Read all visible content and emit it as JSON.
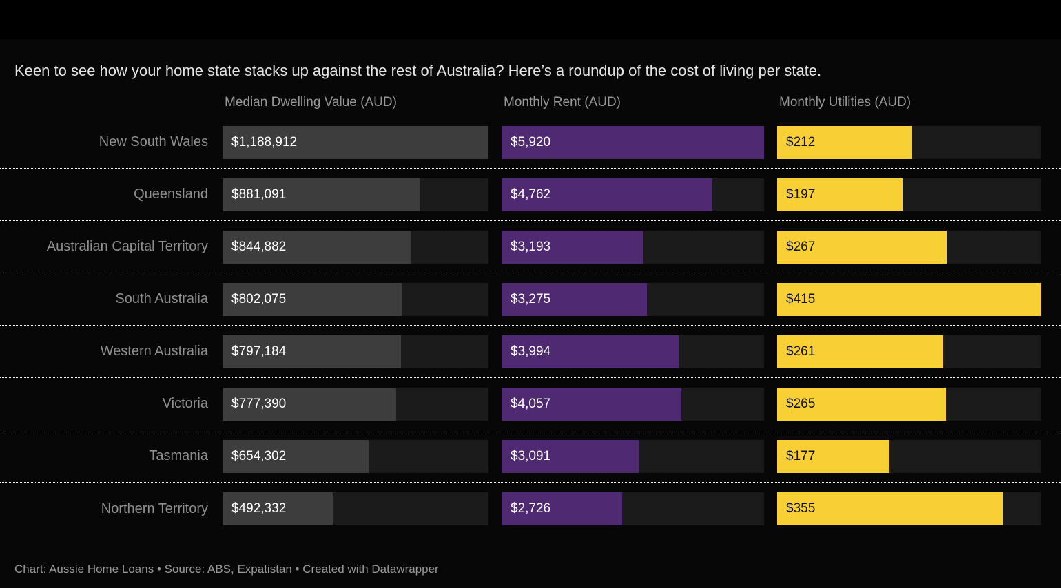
{
  "page": {
    "subtitle": "Keen to see how your home state stacks up against the rest of Australia? Here’s a roundup of the cost of living per state.",
    "footer": "Chart: Aussie Home Loans • Source: ABS, Expatistan • Created with Datawrapper"
  },
  "colors": {
    "background": "#070707",
    "track": "#1b1b1b",
    "dwelling_bar": "#3d3d3d",
    "rent_bar": "#4f2a72",
    "utilities_bar": "#f9cf36",
    "separator": "#ffffff"
  },
  "chart_data": {
    "type": "bar",
    "orientation": "horizontal",
    "grid": false,
    "legend_position": "column-headers",
    "categories": [
      "New South Wales",
      "Queensland",
      "Australian Capital Territory",
      "South Australia",
      "Western Australia",
      "Victoria",
      "Tasmania",
      "Northern Territory"
    ],
    "series": [
      {
        "name": "Median Dwelling Value (AUD)",
        "color": "#3d3d3d",
        "text_color": "#ffffff",
        "axis_max": 1188912,
        "values": [
          1188912,
          881091,
          844882,
          802075,
          797184,
          777390,
          654302,
          492332
        ],
        "labels": [
          "$1,188,912",
          "$881,091",
          "$844,882",
          "$802,075",
          "$797,184",
          "$777,390",
          "$654,302",
          "$492,332"
        ]
      },
      {
        "name": "Monthly Rent (AUD)",
        "color": "#4f2a72",
        "text_color": "#ffffff",
        "axis_max": 5920,
        "values": [
          5920,
          4762,
          3193,
          3275,
          3994,
          4057,
          3091,
          2726
        ],
        "labels": [
          "$5,920",
          "$4,762",
          "$3,193",
          "$3,275",
          "$3,994",
          "$4,057",
          "$3,091",
          "$2,726"
        ]
      },
      {
        "name": "Monthly Utilities (AUD)",
        "color": "#f9cf36",
        "text_color": "#111111",
        "axis_max": 415,
        "values": [
          212,
          197,
          267,
          415,
          261,
          265,
          177,
          355
        ],
        "labels": [
          "$212",
          "$197",
          "$267",
          "$415",
          "$261",
          "$265",
          "$177",
          "$355"
        ]
      }
    ]
  }
}
